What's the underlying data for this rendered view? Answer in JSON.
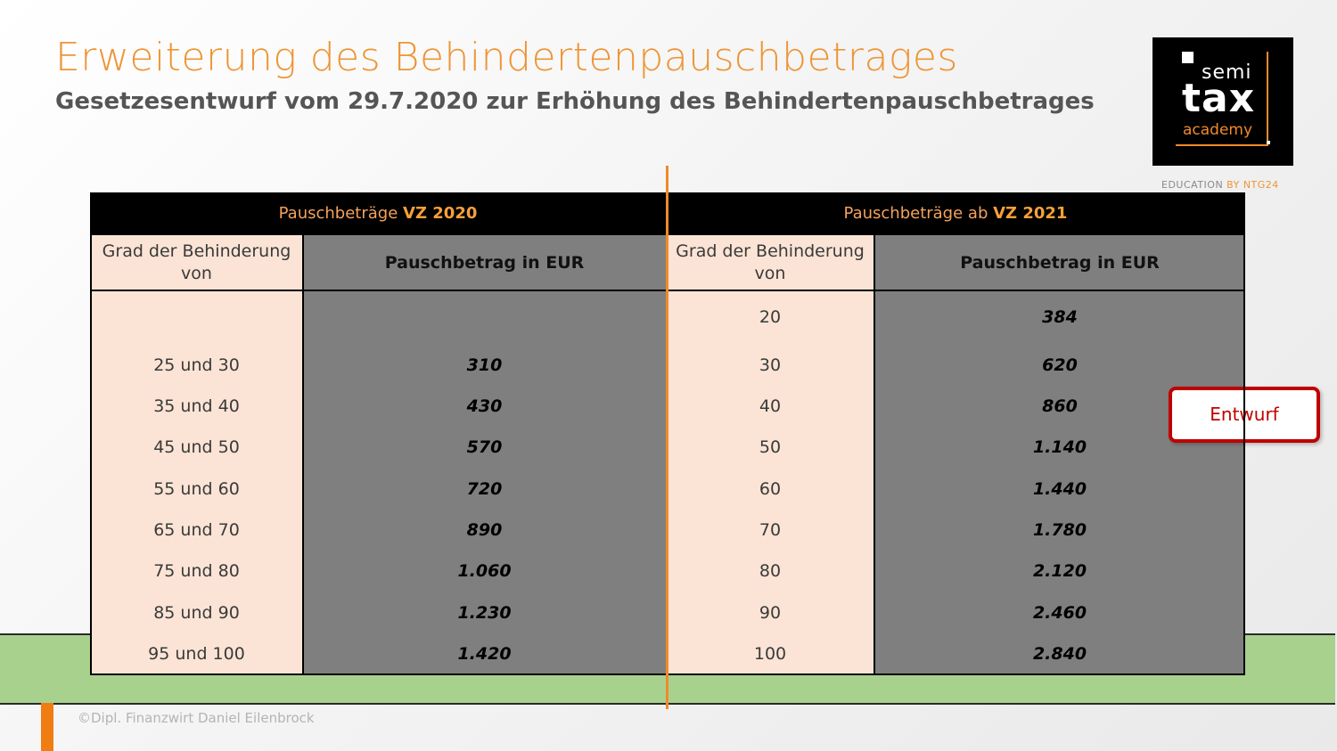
{
  "slide": {
    "title": "Erweiterung des Behindertenpauschbetrages",
    "subtitle": "Gesetzesentwurf vom 29.7.2020 zur Erhöhung des Behindertenpauschbetrages",
    "footer": "©Dipl. Finanzwirt Daniel Eilenbrock",
    "badge": "Entwurf"
  },
  "logo": {
    "semi": "semi",
    "tax": "tax",
    "academy": "academy",
    "tagline_prefix": "EDUCATION ",
    "tagline_brand": "BY NTG24"
  },
  "table": {
    "left": {
      "header_prefix": "Pauschbeträge ",
      "header_bold": "VZ 2020",
      "col_grad": "Grad der Behinderung von",
      "col_amount": "Pauschbetrag in EUR",
      "rows": [
        {
          "grad": "",
          "amount": ""
        },
        {
          "grad": "25 und 30",
          "amount": "310"
        },
        {
          "grad": "35 und 40",
          "amount": "430"
        },
        {
          "grad": "45 und 50",
          "amount": "570"
        },
        {
          "grad": "55 und 60",
          "amount": "720"
        },
        {
          "grad": "65 und 70",
          "amount": "890"
        },
        {
          "grad": "75 und 80",
          "amount": "1.060"
        },
        {
          "grad": "85 und 90",
          "amount": "1.230"
        },
        {
          "grad": "95 und 100",
          "amount": "1.420"
        }
      ]
    },
    "right": {
      "header_prefix": "Pauschbeträge ab ",
      "header_bold": "VZ 2021",
      "col_grad": "Grad der Behinderung von",
      "col_amount": "Pauschbetrag in EUR",
      "rows": [
        {
          "grad": "20",
          "amount": "384"
        },
        {
          "grad": "30",
          "amount": "620"
        },
        {
          "grad": "40",
          "amount": "860"
        },
        {
          "grad": "50",
          "amount": "1.140"
        },
        {
          "grad": "60",
          "amount": "1.440"
        },
        {
          "grad": "70",
          "amount": "1.780"
        },
        {
          "grad": "80",
          "amount": "2.120"
        },
        {
          "grad": "90",
          "amount": "2.460"
        },
        {
          "grad": "100",
          "amount": "2.840"
        }
      ]
    }
  }
}
